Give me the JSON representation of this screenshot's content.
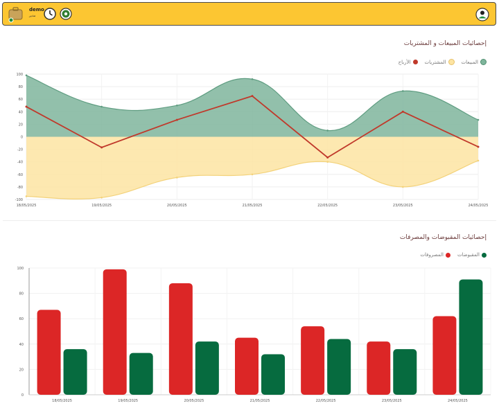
{
  "header": {
    "user_name": "demo",
    "user_role": "مدير",
    "icons": [
      "briefcase-icon",
      "clock-icon",
      "settings-icon",
      "profile-icon"
    ]
  },
  "charts": {
    "sales": {
      "title": "إحصائيات المبيعات و المشتريات",
      "legend": [
        "المبيعات",
        "المشتريات",
        "الأرباح"
      ]
    },
    "cash": {
      "title": "إحصائيات المقبوضات والمصرفات",
      "legend": [
        "المقبوضات",
        "المصروفات"
      ]
    }
  },
  "colors": {
    "sales": "#7fb59c",
    "purchases": "#fde4a2",
    "profits": "#c0392b",
    "receipts": "#066b3f",
    "expenses": "#dc2626",
    "header_bg": "#fcc632"
  },
  "chart_data": [
    {
      "type": "area",
      "title": "إحصائيات المبيعات و المشتريات",
      "x": [
        "18/05/2025",
        "19/05/2025",
        "20/05/2025",
        "21/05/2025",
        "22/05/2025",
        "23/05/2025",
        "24/05/2025"
      ],
      "series": [
        {
          "name": "المبيعات",
          "values": [
            98,
            48,
            50,
            92,
            10,
            73,
            27
          ]
        },
        {
          "name": "المشتريات",
          "values": [
            -95,
            -97,
            -65,
            -60,
            -40,
            -80,
            -38
          ]
        },
        {
          "name": "الأرباح",
          "values": [
            48,
            -17,
            27,
            65,
            -33,
            40,
            -16
          ]
        }
      ],
      "ylim": [
        -100,
        100
      ],
      "yticks": [
        -100,
        -80,
        -60,
        -40,
        -20,
        0,
        20,
        40,
        60,
        80,
        100
      ],
      "grid": true,
      "legend": "top-right"
    },
    {
      "type": "bar",
      "title": "إحصائيات المقبوضات والمصرفات",
      "categories": [
        "18/05/2025",
        "19/05/2025",
        "20/05/2025",
        "21/05/2025",
        "22/05/2025",
        "23/05/2025",
        "24/05/2025"
      ],
      "series": [
        {
          "name": "المصروفات",
          "values": [
            67,
            99,
            88,
            45,
            54,
            42,
            62
          ]
        },
        {
          "name": "المقبوضات",
          "values": [
            36,
            33,
            42,
            32,
            44,
            36,
            91
          ]
        }
      ],
      "ylim": [
        0,
        100
      ],
      "yticks": [
        0,
        20,
        40,
        60,
        80,
        100
      ],
      "grid": true,
      "legend": "top-right"
    }
  ]
}
